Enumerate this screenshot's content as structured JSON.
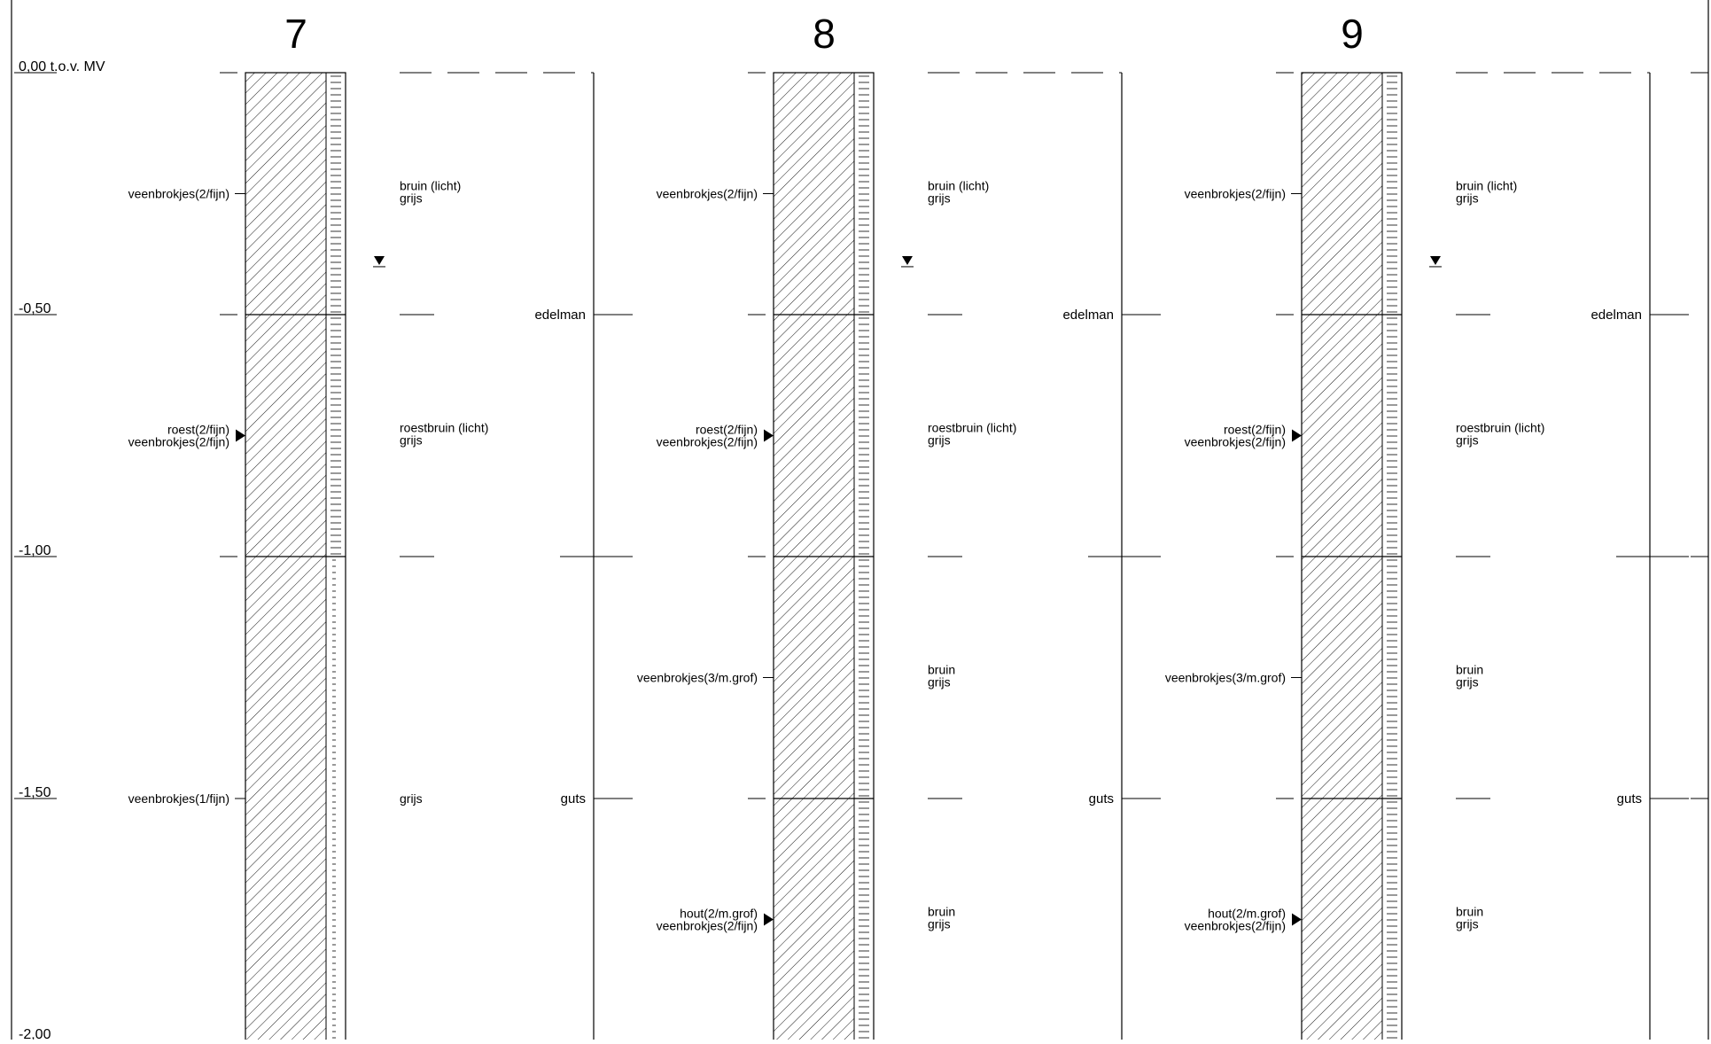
{
  "depth_axis": {
    "reference_label": "0,00 t.o.v. MV",
    "ticks": [
      {
        "depth": 0.0,
        "label": ""
      },
      {
        "depth": 0.5,
        "label": "-0,50"
      },
      {
        "depth": 1.0,
        "label": "-1,00"
      },
      {
        "depth": 1.5,
        "label": "-1,50"
      },
      {
        "depth": 2.0,
        "label": "-2,00"
      }
    ]
  },
  "colors": {
    "line": "#000000",
    "background": "#ffffff"
  },
  "profiles": [
    {
      "number": "7",
      "groundwater_depth": 0.39,
      "strip_type": "dotted",
      "strip_change_depth": 1.0,
      "layers": [
        {
          "top": 0.0,
          "bottom": 0.5,
          "marker_depth": 0.25,
          "marker": "tick",
          "admixtures": [
            "veenbrokjes(2/fijn)"
          ],
          "color": [
            "bruin (licht)",
            "grijs"
          ]
        },
        {
          "top": 0.5,
          "bottom": 1.0,
          "marker_depth": 0.75,
          "marker": "arrow",
          "admixtures": [
            "roest(2/fijn)",
            "veenbrokjes(2/fijn)"
          ],
          "color": [
            "roestbruin (licht)",
            "grijs"
          ]
        },
        {
          "top": 1.0,
          "bottom": 2.0,
          "marker_depth": 1.5,
          "marker": "tick",
          "admixtures": [
            "veenbrokjes(1/fijn)"
          ],
          "color": [
            "grijs"
          ]
        }
      ],
      "methods": [
        {
          "name": "edelman",
          "top": 0.0,
          "bottom": 1.0
        },
        {
          "name": "guts",
          "top": 1.0,
          "bottom": 2.0
        }
      ]
    },
    {
      "number": "8",
      "groundwater_depth": 0.39,
      "strip_type": "dashed",
      "strip_change_depth": null,
      "layers": [
        {
          "top": 0.0,
          "bottom": 0.5,
          "marker_depth": 0.25,
          "marker": "tick",
          "admixtures": [
            "veenbrokjes(2/fijn)"
          ],
          "color": [
            "bruin (licht)",
            "grijs"
          ]
        },
        {
          "top": 0.5,
          "bottom": 1.0,
          "marker_depth": 0.75,
          "marker": "arrow",
          "admixtures": [
            "roest(2/fijn)",
            "veenbrokjes(2/fijn)"
          ],
          "color": [
            "roestbruin (licht)",
            "grijs"
          ]
        },
        {
          "top": 1.0,
          "bottom": 1.5,
          "marker_depth": 1.25,
          "marker": "tick",
          "admixtures": [
            "veenbrokjes(3/m.grof)"
          ],
          "color": [
            "bruin",
            "grijs"
          ]
        },
        {
          "top": 1.5,
          "bottom": 2.0,
          "marker_depth": 1.75,
          "marker": "arrow",
          "admixtures": [
            "hout(2/m.grof)",
            "veenbrokjes(2/fijn)"
          ],
          "color": [
            "bruin",
            "grijs"
          ]
        }
      ],
      "methods": [
        {
          "name": "edelman",
          "top": 0.0,
          "bottom": 1.0
        },
        {
          "name": "guts",
          "top": 1.0,
          "bottom": 2.0
        }
      ]
    },
    {
      "number": "9",
      "groundwater_depth": 0.39,
      "strip_type": "dashed",
      "strip_change_depth": null,
      "layers": [
        {
          "top": 0.0,
          "bottom": 0.5,
          "marker_depth": 0.25,
          "marker": "tick",
          "admixtures": [
            "veenbrokjes(2/fijn)"
          ],
          "color": [
            "bruin (licht)",
            "grijs"
          ]
        },
        {
          "top": 0.5,
          "bottom": 1.0,
          "marker_depth": 0.75,
          "marker": "arrow",
          "admixtures": [
            "roest(2/fijn)",
            "veenbrokjes(2/fijn)"
          ],
          "color": [
            "roestbruin (licht)",
            "grijs"
          ]
        },
        {
          "top": 1.0,
          "bottom": 1.5,
          "marker_depth": 1.25,
          "marker": "tick",
          "admixtures": [
            "veenbrokjes(3/m.grof)"
          ],
          "color": [
            "bruin",
            "grijs"
          ]
        },
        {
          "top": 1.5,
          "bottom": 2.0,
          "marker_depth": 1.75,
          "marker": "arrow",
          "admixtures": [
            "hout(2/m.grof)",
            "veenbrokjes(2/fijn)"
          ],
          "color": [
            "bruin",
            "grijs"
          ]
        }
      ],
      "methods": [
        {
          "name": "edelman",
          "top": 0.0,
          "bottom": 1.0
        },
        {
          "name": "guts",
          "top": 1.0,
          "bottom": 2.0
        }
      ]
    }
  ]
}
